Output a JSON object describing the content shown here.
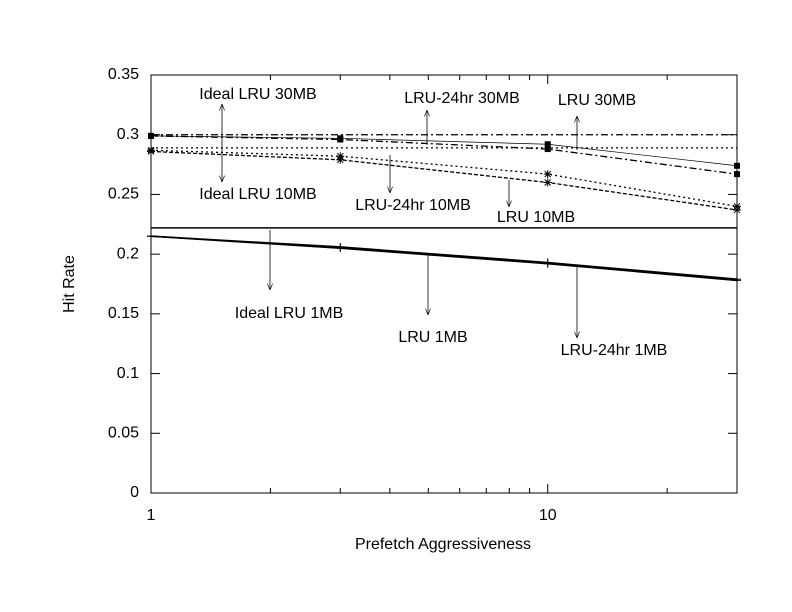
{
  "chart_data": {
    "type": "line",
    "x_label": "Prefetch Aggressiveness",
    "y_label": "Hit Rate",
    "x": [
      1,
      3,
      10,
      30
    ],
    "xlim": [
      1,
      30
    ],
    "xticks": [
      1,
      10
    ],
    "xminor_ticks": [
      2,
      3,
      4,
      5,
      6,
      7,
      8,
      9,
      20,
      30
    ],
    "xscale": "log",
    "ylim": [
      0,
      0.35
    ],
    "yticks": [
      0,
      0.05,
      0.1,
      0.15,
      0.2,
      0.25,
      0.3,
      0.35
    ],
    "series": [
      {
        "name": "Ideal LRU 30MB",
        "color": "#000000",
        "line_style": "dashdot",
        "marker": "none",
        "values": [
          0.3,
          0.3,
          0.3,
          0.3
        ]
      },
      {
        "name": "Ideal LRU 10MB",
        "color": "#000000",
        "line_style": "dotted",
        "marker": "none",
        "values": [
          0.289,
          0.289,
          0.289,
          0.289
        ]
      },
      {
        "name": "Ideal LRU 1MB",
        "color": "#000000",
        "line_style": "solid",
        "marker": "none",
        "values": [
          0.222,
          0.222,
          0.222,
          0.222
        ]
      },
      {
        "name": "LRU 30MB",
        "color": "#000000",
        "line_style": "thin",
        "marker": "square",
        "values": [
          0.299,
          0.297,
          0.292,
          0.274
        ]
      },
      {
        "name": "LRU-24hr 30MB",
        "color": "#000000",
        "line_style": "dashdot",
        "marker": "square",
        "values": [
          0.299,
          0.296,
          0.288,
          0.267
        ]
      },
      {
        "name": "LRU 10MB",
        "color": "#000000",
        "line_style": "dotted",
        "marker": "star",
        "values": [
          0.287,
          0.282,
          0.267,
          0.24
        ]
      },
      {
        "name": "LRU-24hr 10MB",
        "color": "#000000",
        "line_style": "dashed",
        "marker": "star",
        "values": [
          0.286,
          0.279,
          0.26,
          0.237
        ]
      },
      {
        "name": "LRU 1MB",
        "color": "#000000",
        "line_style": "solid",
        "marker": "plus",
        "values": [
          0.215,
          0.206,
          0.193,
          0.179
        ]
      },
      {
        "name": "LRU-24hr 1MB",
        "color": "#000000",
        "line_style": "solid",
        "marker": "plus",
        "values": [
          0.215,
          0.205,
          0.192,
          0.178
        ]
      }
    ]
  }
}
